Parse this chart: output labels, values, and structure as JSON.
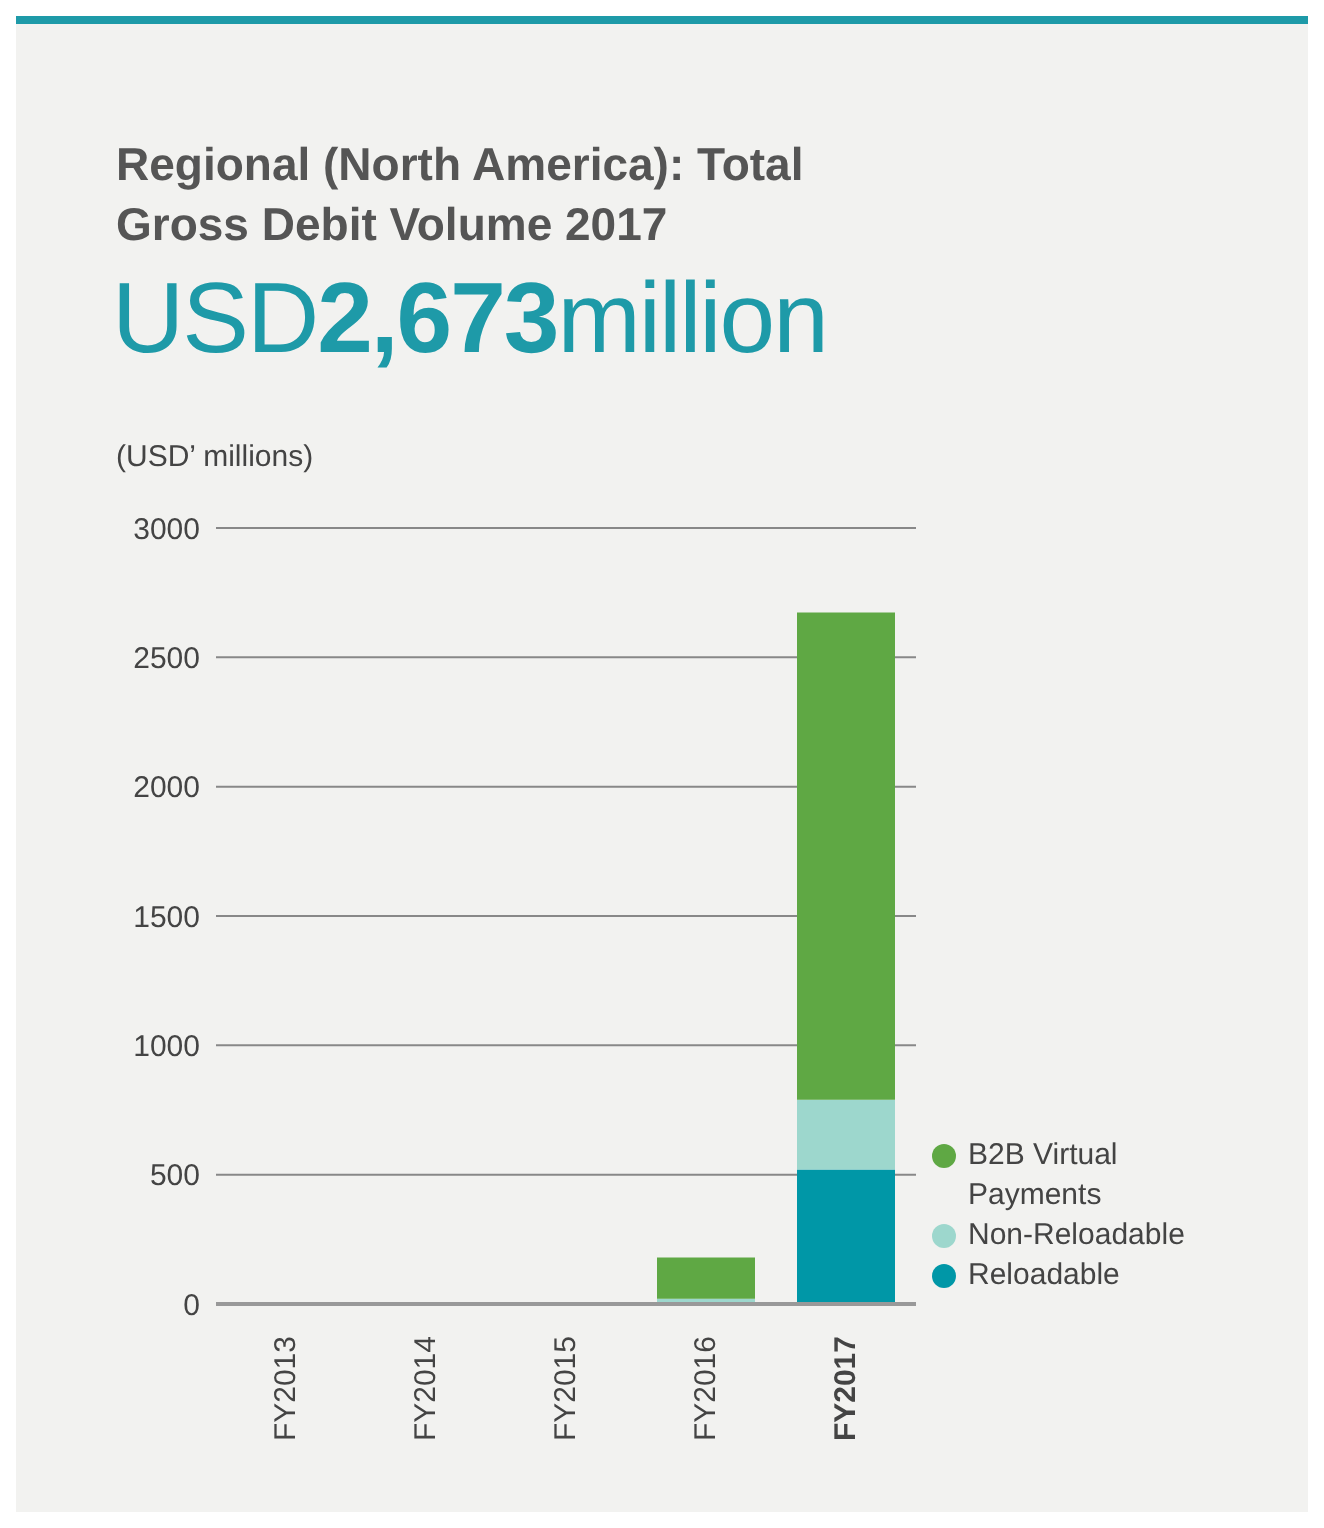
{
  "chart_data": {
    "type": "bar",
    "title": "Regional (North America): Total Gross Debit Volume 2017",
    "subtitle": "USD2,673million",
    "ylabel": "(USD’ millions)",
    "categories": [
      "FY2013",
      "FY2014",
      "FY2015",
      "FY2016",
      "FY2017"
    ],
    "series": [
      {
        "name": "Reloadable",
        "color": "#0097a7",
        "values": [
          null,
          null,
          null,
          0,
          520
        ]
      },
      {
        "name": "Non-Reloadable",
        "color": "#9dd7cd",
        "values": [
          0,
          0,
          0,
          20,
          270
        ]
      },
      {
        "name": "B2B Virtual Payments",
        "color": "#5fa844",
        "values": [
          0,
          0,
          0,
          160,
          1883
        ]
      }
    ],
    "stacked": true,
    "ylim": [
      0,
      3000
    ],
    "yticks": [
      0,
      500,
      1000,
      1500,
      2000,
      2500,
      3000
    ],
    "grid": "y",
    "legend": "right"
  }
}
